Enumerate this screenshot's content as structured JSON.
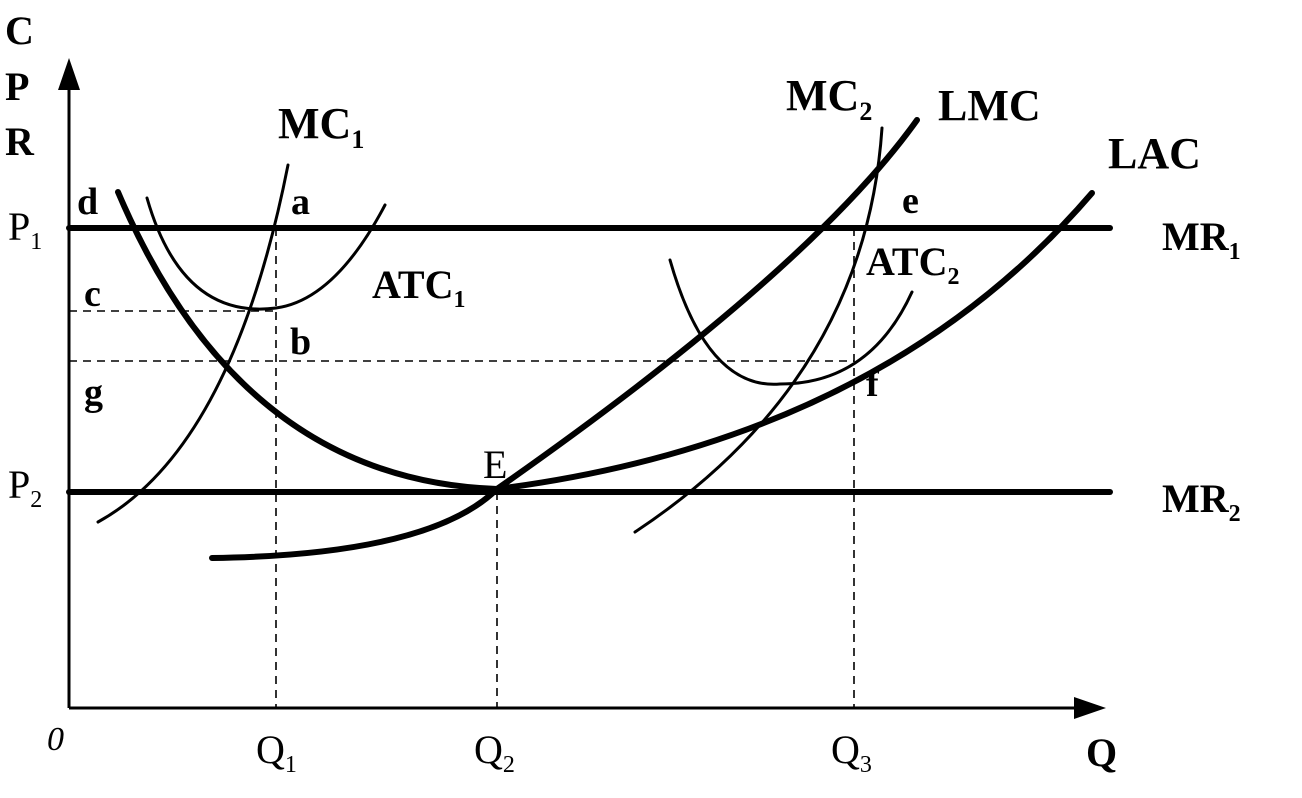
{
  "axes": {
    "y_label_lines": [
      "C",
      "P",
      "R"
    ],
    "x_label": "Q",
    "origin": "0"
  },
  "price_levels": {
    "p1": {
      "base": "P",
      "sub": "1"
    },
    "p2": {
      "base": "P",
      "sub": "2"
    }
  },
  "quantity_levels": {
    "q1": {
      "base": "Q",
      "sub": "1"
    },
    "q2": {
      "base": "Q",
      "sub": "2"
    },
    "q3": {
      "base": "Q",
      "sub": "3"
    }
  },
  "curves": {
    "mc1": {
      "base": "MC",
      "sub": "1"
    },
    "atc1": {
      "base": "ATC",
      "sub": "1"
    },
    "mc2": {
      "base": "MC",
      "sub": "2"
    },
    "atc2": {
      "base": "ATC",
      "sub": "2"
    },
    "lmc": {
      "base": "LMC"
    },
    "lac": {
      "base": "LAC"
    },
    "mr1": {
      "base": "MR",
      "sub": "1"
    },
    "mr2": {
      "base": "MR",
      "sub": "2"
    }
  },
  "points": {
    "a": "a",
    "b": "b",
    "c": "c",
    "d": "d",
    "e": "e",
    "f": "f",
    "g": "g",
    "E": "E"
  }
}
